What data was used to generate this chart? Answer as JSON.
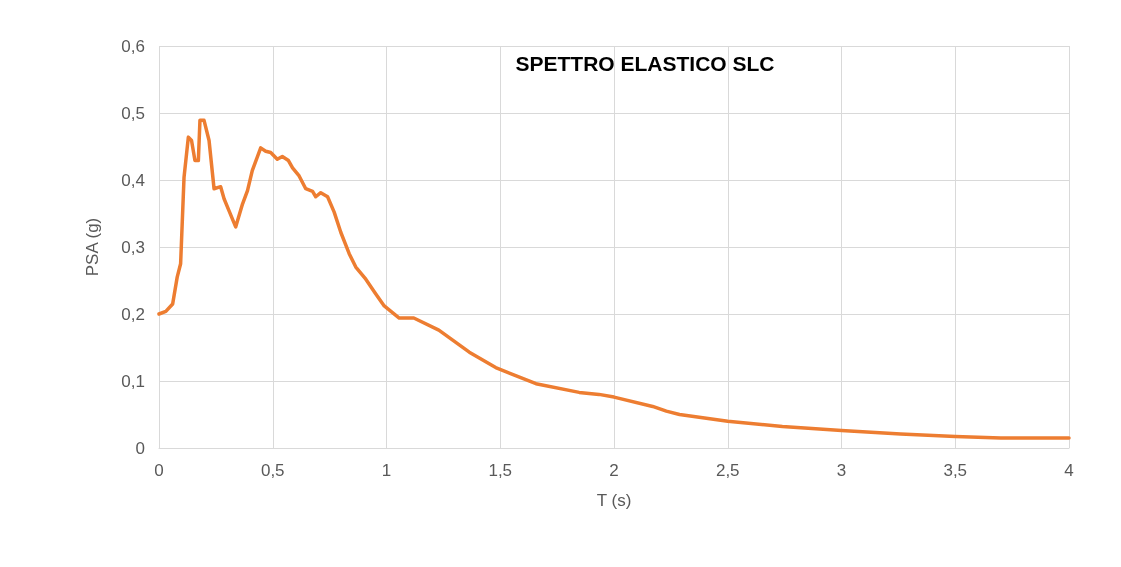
{
  "chart_data": {
    "type": "line",
    "title": "SPETTRO ELASTICO SLC",
    "xlabel": "T (s)",
    "ylabel": "PSA (g)",
    "series": [
      {
        "color": "#ed7d31",
        "x": [
          0,
          0.03,
          0.06,
          0.08,
          0.095,
          0.11,
          0.129,
          0.143,
          0.158,
          0.173,
          0.18,
          0.198,
          0.22,
          0.242,
          0.271,
          0.286,
          0.308,
          0.337,
          0.367,
          0.389,
          0.41,
          0.447,
          0.469,
          0.491,
          0.52,
          0.542,
          0.569,
          0.587,
          0.616,
          0.645,
          0.675,
          0.689,
          0.711,
          0.741,
          0.77,
          0.799,
          0.836,
          0.865,
          0.909,
          0.953,
          0.99,
          1.056,
          1.12,
          1.23,
          1.364,
          1.48,
          1.657,
          1.847,
          1.934,
          2.0,
          2.17,
          2.23,
          2.288,
          2.5,
          2.74,
          3.0,
          3.26,
          3.5,
          3.7,
          4.0
        ],
        "values": [
          0.2,
          0.204,
          0.215,
          0.255,
          0.275,
          0.404,
          0.464,
          0.459,
          0.429,
          0.429,
          0.489,
          0.489,
          0.459,
          0.387,
          0.39,
          0.372,
          0.354,
          0.33,
          0.364,
          0.384,
          0.414,
          0.448,
          0.443,
          0.441,
          0.431,
          0.435,
          0.429,
          0.418,
          0.406,
          0.387,
          0.383,
          0.375,
          0.381,
          0.375,
          0.352,
          0.322,
          0.29,
          0.27,
          0.252,
          0.23,
          0.212,
          0.194,
          0.194,
          0.176,
          0.143,
          0.12,
          0.096,
          0.083,
          0.08,
          0.076,
          0.062,
          0.055,
          0.05,
          0.04,
          0.032,
          0.026,
          0.021,
          0.017,
          0.015,
          0.015
        ]
      }
    ],
    "xlim": [
      0,
      4
    ],
    "xticks": [
      0,
      {
        "value": 0.5,
        "label": "0,5"
      },
      1,
      {
        "value": 1.5,
        "label": "1,5"
      },
      2,
      {
        "value": 2.5,
        "label": "2,5"
      },
      3,
      {
        "value": 3.5,
        "label": "3,5"
      },
      4
    ],
    "ylim": [
      0,
      0.6
    ],
    "yticks": [
      0,
      {
        "value": 0.1,
        "label": "0,1"
      },
      {
        "value": 0.2,
        "label": "0,2"
      },
      {
        "value": 0.3,
        "label": "0,3"
      },
      {
        "value": 0.4,
        "label": "0,4"
      },
      {
        "value": 0.5,
        "label": "0,5"
      },
      {
        "value": 0.6,
        "label": "0,6"
      }
    ],
    "grid": true,
    "marker": "none",
    "line_style": "solid"
  }
}
